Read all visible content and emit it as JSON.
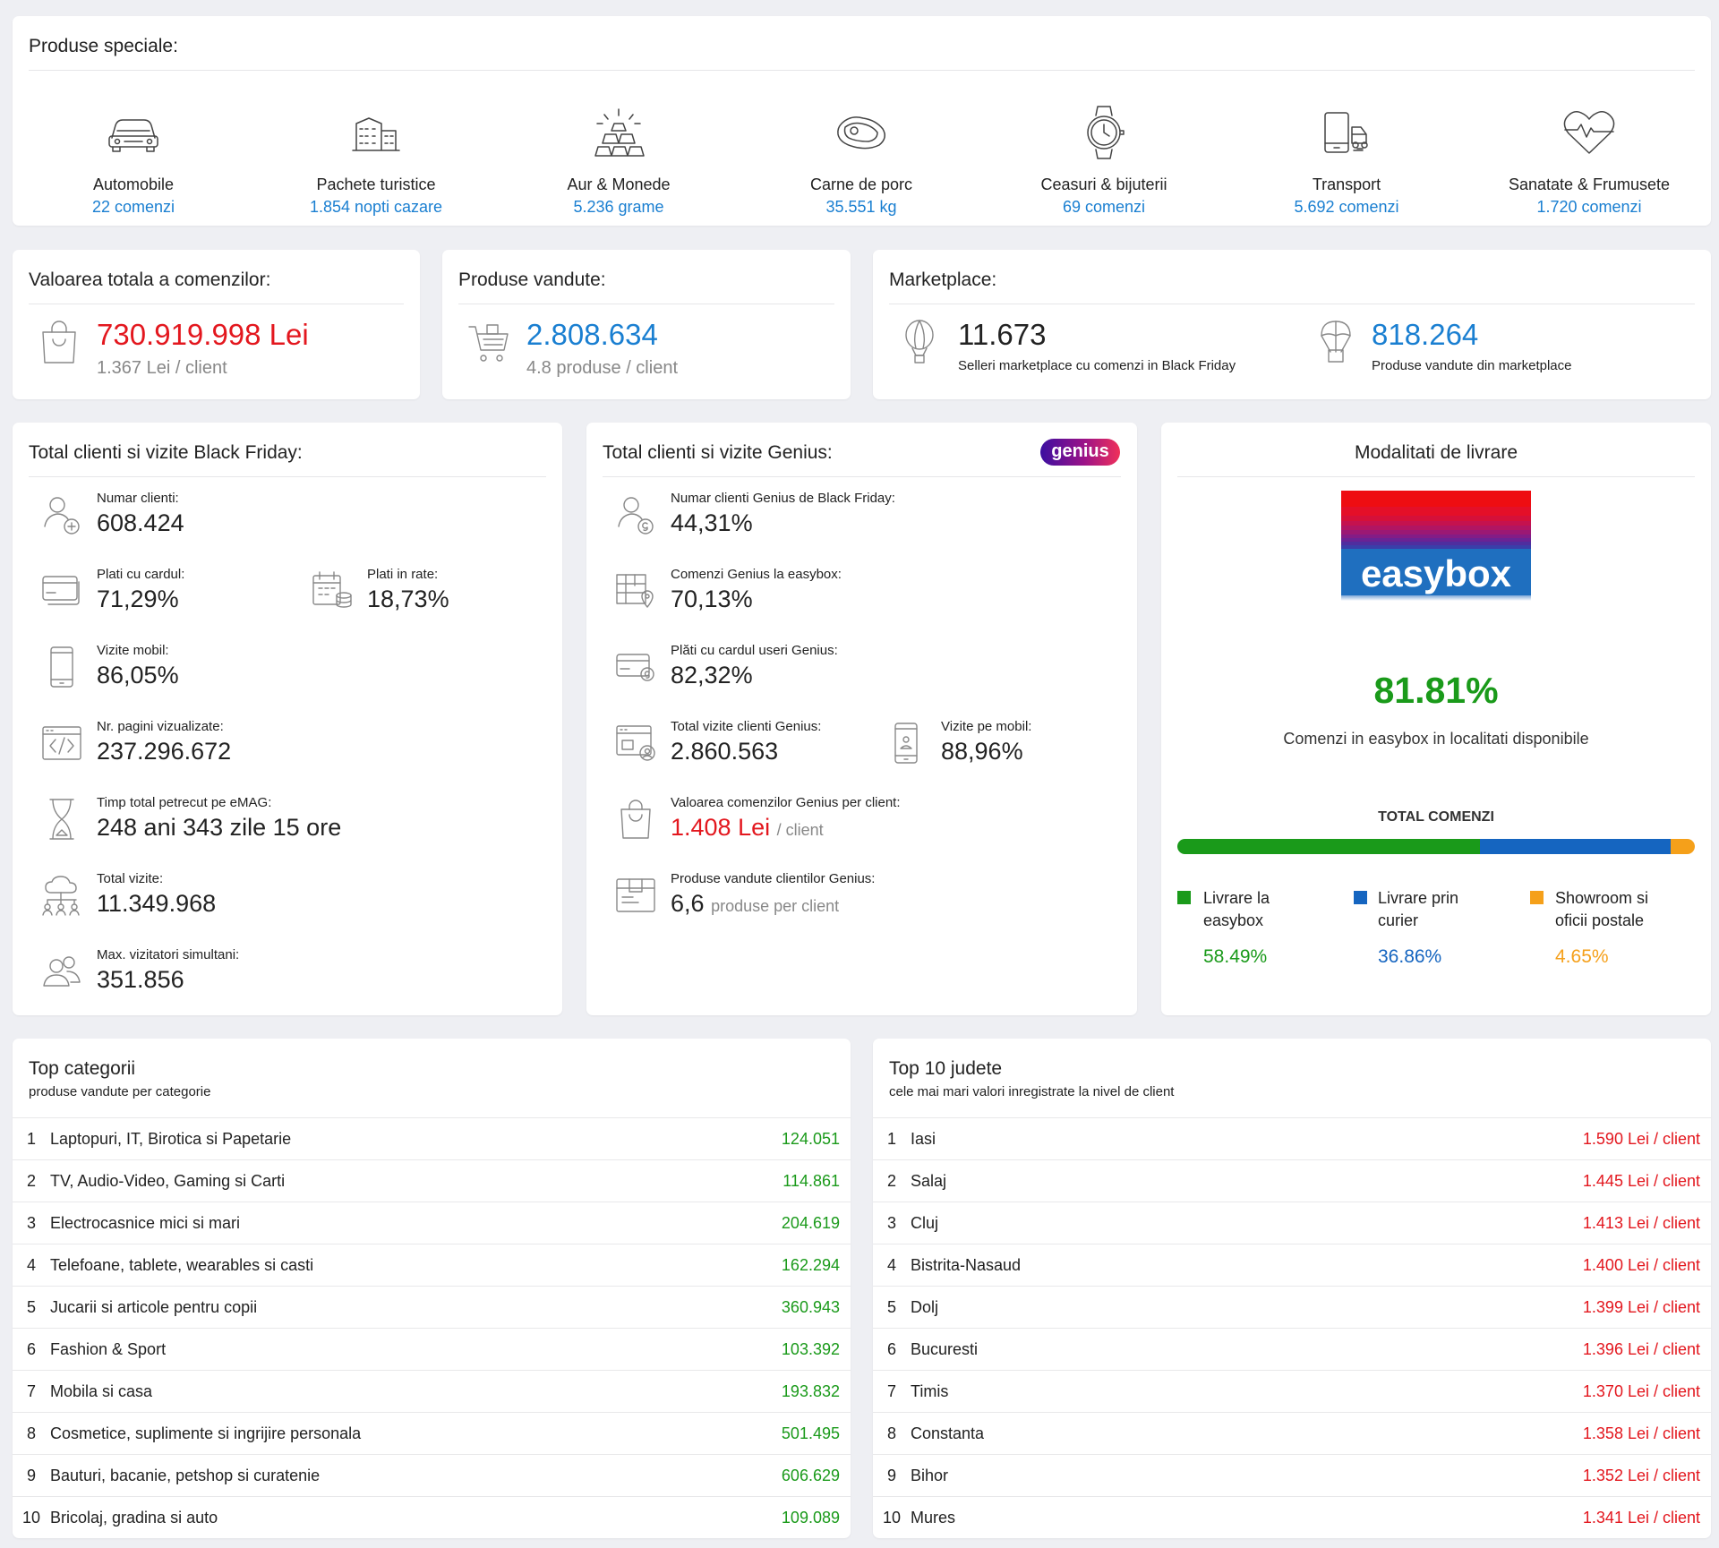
{
  "special": {
    "title": "Produse speciale:",
    "items": [
      {
        "icon": "car-icon",
        "label": "Automobile",
        "value": "22 comenzi"
      },
      {
        "icon": "building-icon",
        "label": "Pachete turistice",
        "value": "1.854 nopti cazare"
      },
      {
        "icon": "gold-bars-icon",
        "label": "Aur & Monede",
        "value": "5.236 grame"
      },
      {
        "icon": "meat-icon",
        "label": "Carne de porc",
        "value": "35.551 kg"
      },
      {
        "icon": "watch-icon",
        "label": "Ceasuri & bijuterii",
        "value": "69 comenzi"
      },
      {
        "icon": "delivery-icon",
        "label": "Transport",
        "value": "5.692 comenzi"
      },
      {
        "icon": "heart-pulse-icon",
        "label": "Sanatate & Frumusete",
        "value": "1.720 comenzi"
      }
    ]
  },
  "orders_value": {
    "title": "Valoarea totala a comenzilor:",
    "value": "730.919.998 Lei",
    "sub": "1.367 Lei / client"
  },
  "products_sold": {
    "title": "Produse vandute:",
    "value": "2.808.634",
    "sub": "4.8 produse / client"
  },
  "marketplace": {
    "title": "Marketplace:",
    "sellers_value": "11.673",
    "sellers_label": "Selleri marketplace cu comenzi in Black Friday",
    "products_value": "818.264",
    "products_label": "Produse vandute din marketplace"
  },
  "bf": {
    "title": "Total clienti si vizite Black Friday:",
    "clients_label": "Numar clienti:",
    "clients_value": "608.424",
    "card_label": "Plati cu cardul:",
    "card_value": "71,29%",
    "rate_label": "Plati in rate:",
    "rate_value": "18,73%",
    "mobile_label": "Vizite mobil:",
    "mobile_value": "86,05%",
    "pages_label": "Nr. pagini vizualizate:",
    "pages_value": "237.296.672",
    "time_label": "Timp total petrecut pe eMAG:",
    "time_value": "248 ani 343 zile 15 ore",
    "visits_label": "Total vizite:",
    "visits_value": "11.349.968",
    "max_label": "Max. vizitatori simultani:",
    "max_value": "351.856"
  },
  "genius": {
    "title": "Total clienti si vizite Genius:",
    "badge": "genius",
    "clients_label": "Numar clienti Genius de Black Friday:",
    "clients_value": "44,31%",
    "easybox_label": "Comenzi Genius la easybox:",
    "easybox_value": "70,13%",
    "card_label": "Plăti cu cardul useri Genius:",
    "card_value": "82,32%",
    "visits_label": "Total vizite clienti Genius:",
    "visits_value": "2.860.563",
    "mobile_label": "Vizite pe mobil:",
    "mobile_value": "88,96%",
    "order_value_label": "Valoarea comenzilor Genius per client:",
    "order_value": "1.408 Lei",
    "order_value_unit": "/ client",
    "products_label": "Produse vandute clientilor Genius:",
    "products_value": "6,6",
    "products_unit": "produse per client"
  },
  "delivery": {
    "title": "Modalitati de livrare",
    "logo_text": "easybox",
    "percent": "81.81%",
    "caption": "Comenzi in easybox in localitati disponibile",
    "total_label": "TOTAL COMENZI",
    "bar": [
      {
        "fraction": 0.5849,
        "color": "#1a9a1a"
      },
      {
        "fraction": 0.3686,
        "color": "#1565c0"
      },
      {
        "fraction": 0.0465,
        "color": "#f5a01a"
      }
    ],
    "legend": [
      {
        "line1": "Livrare la",
        "line2": "easybox",
        "value": "58.49%",
        "color": "#1a9a1a"
      },
      {
        "line1": "Livrare prin",
        "line2": "curier",
        "value": "36.86%",
        "color": "#1565c0"
      },
      {
        "line1": "Showroom si",
        "line2": "oficii postale",
        "value": "4.65%",
        "color": "#f5a01a"
      }
    ]
  },
  "top_categories": {
    "title": "Top categorii",
    "subtitle": "produse vandute per categorie",
    "rows": [
      {
        "rank": "1",
        "name": "Laptopuri, IT, Birotica si Papetarie",
        "value": "124.051"
      },
      {
        "rank": "2",
        "name": "TV, Audio-Video, Gaming si Carti",
        "value": "114.861"
      },
      {
        "rank": "3",
        "name": "Electrocasnice mici si mari",
        "value": "204.619"
      },
      {
        "rank": "4",
        "name": "Telefoane, tablete, wearables si casti",
        "value": "162.294"
      },
      {
        "rank": "5",
        "name": "Jucarii si articole pentru copii",
        "value": "360.943"
      },
      {
        "rank": "6",
        "name": "Fashion & Sport",
        "value": "103.392"
      },
      {
        "rank": "7",
        "name": "Mobila si casa",
        "value": "193.832"
      },
      {
        "rank": "8",
        "name": "Cosmetice, suplimente si ingrijire personala",
        "value": "501.495"
      },
      {
        "rank": "9",
        "name": "Bauturi, bacanie, petshop si curatenie",
        "value": "606.629"
      },
      {
        "rank": "10",
        "name": "Bricolaj, gradina si auto",
        "value": "109.089"
      }
    ]
  },
  "top_counties": {
    "title": "Top 10 judete",
    "subtitle": "cele mai mari valori inregistrate la nivel de client",
    "rows": [
      {
        "rank": "1",
        "name": "Iasi",
        "value": "1.590 Lei / client"
      },
      {
        "rank": "2",
        "name": "Salaj",
        "value": "1.445 Lei / client"
      },
      {
        "rank": "3",
        "name": "Cluj",
        "value": "1.413 Lei / client"
      },
      {
        "rank": "4",
        "name": "Bistrita-Nasaud",
        "value": "1.400 Lei / client"
      },
      {
        "rank": "5",
        "name": "Dolj",
        "value": "1.399 Lei / client"
      },
      {
        "rank": "6",
        "name": "Bucuresti",
        "value": "1.396 Lei / client"
      },
      {
        "rank": "7",
        "name": "Timis",
        "value": "1.370 Lei / client"
      },
      {
        "rank": "8",
        "name": "Constanta",
        "value": "1.358 Lei / client"
      },
      {
        "rank": "9",
        "name": "Bihor",
        "value": "1.352 Lei / client"
      },
      {
        "rank": "10",
        "name": "Mures",
        "value": "1.341 Lei / client"
      }
    ]
  }
}
